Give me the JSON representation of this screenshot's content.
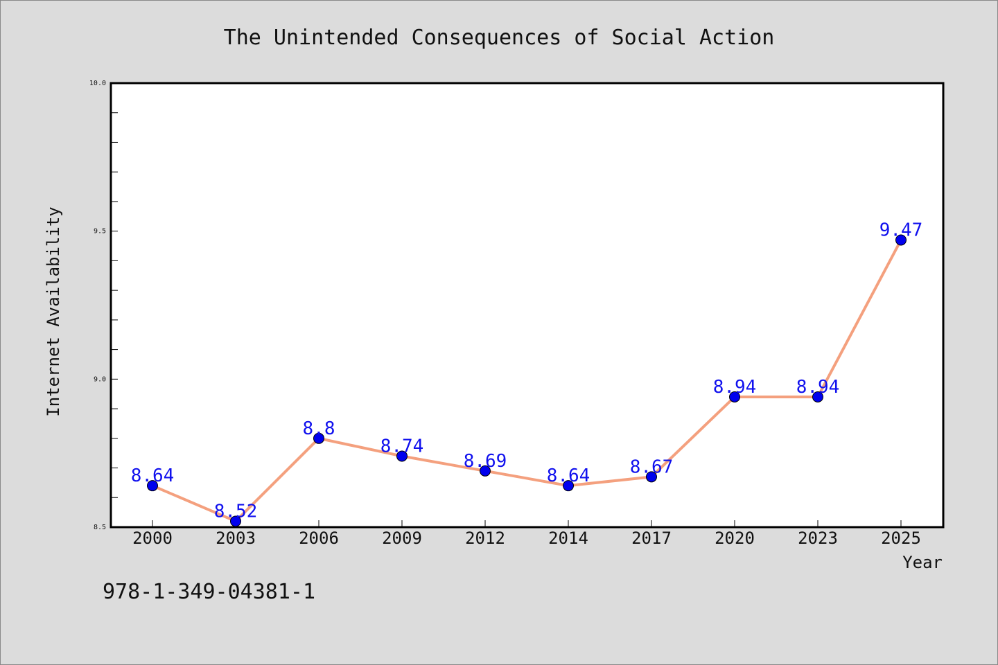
{
  "chart_data": {
    "type": "line",
    "title": "The Unintended Consequences of Social Action",
    "xlabel": "Year",
    "ylabel": "Internet Availability",
    "categories": [
      "2000",
      "2003",
      "2006",
      "2009",
      "2012",
      "2014",
      "2017",
      "2020",
      "2023",
      "2025"
    ],
    "series": [
      {
        "values": [
          8.64,
          8.52,
          8.8,
          8.74,
          8.69,
          8.64,
          8.67,
          8.94,
          8.94,
          9.47
        ],
        "data_labels": [
          "8.64",
          "8.52",
          "8.8",
          "8.74",
          "8.69",
          "8.64",
          "8.67",
          "8.94",
          "8.94",
          "9.47"
        ]
      }
    ],
    "ylim": [
      8.5,
      10.0
    ],
    "y_major_ticks": [
      "8.5",
      "9.0",
      "9.5",
      "10.0"
    ],
    "grid": false,
    "colors": {
      "line": "#f4a07e",
      "marker": "#0000ee",
      "data_label": "#1010ee"
    }
  },
  "footer": {
    "isbn": "978-1-349-04381-1"
  }
}
